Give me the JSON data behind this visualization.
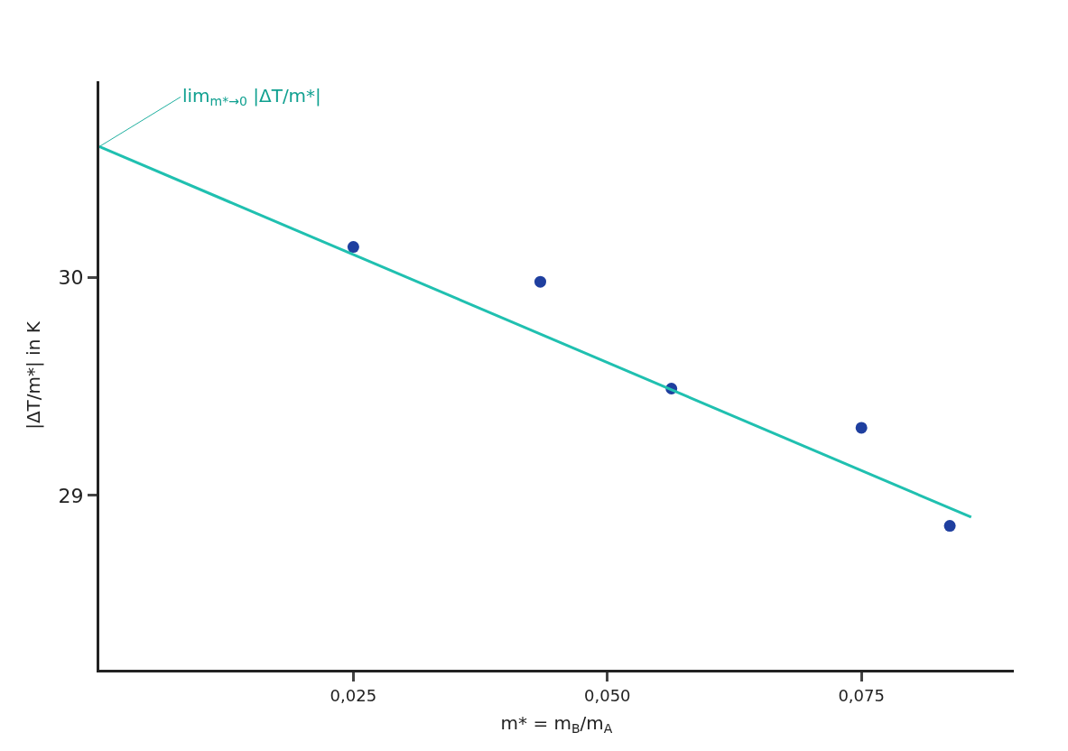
{
  "chart_data": {
    "type": "scatter",
    "xlabel": "m* = m$_{B}$/m$_{A}$",
    "ylabel": "|ΔT/m*| in K",
    "xlim": [
      0,
      0.09
    ],
    "ylim": [
      28.2,
      30.9
    ],
    "xticks": [
      {
        "value": 0.025,
        "label": "0,025"
      },
      {
        "value": 0.05,
        "label": "0,050"
      },
      {
        "value": 0.075,
        "label": "0,075"
      }
    ],
    "yticks": [
      29,
      30
    ],
    "series": [
      {
        "color": "#1f3f9f",
        "marker": "circle",
        "x": [
          0.025,
          0.0434,
          0.0563,
          0.075,
          0.0837
        ],
        "values": [
          30.14,
          29.98,
          29.49,
          29.31,
          28.86
        ]
      },
      {
        "type": "line",
        "color": "#20c0b0",
        "marker": "none",
        "line_style": "solid",
        "x": [
          0,
          0.0858
        ],
        "values": [
          30.6,
          28.9
        ]
      }
    ],
    "annotations": [
      {
        "text": "lim$_{m*→0}$ |ΔT/m*|",
        "x": 0,
        "y": 30.6
      }
    ]
  }
}
